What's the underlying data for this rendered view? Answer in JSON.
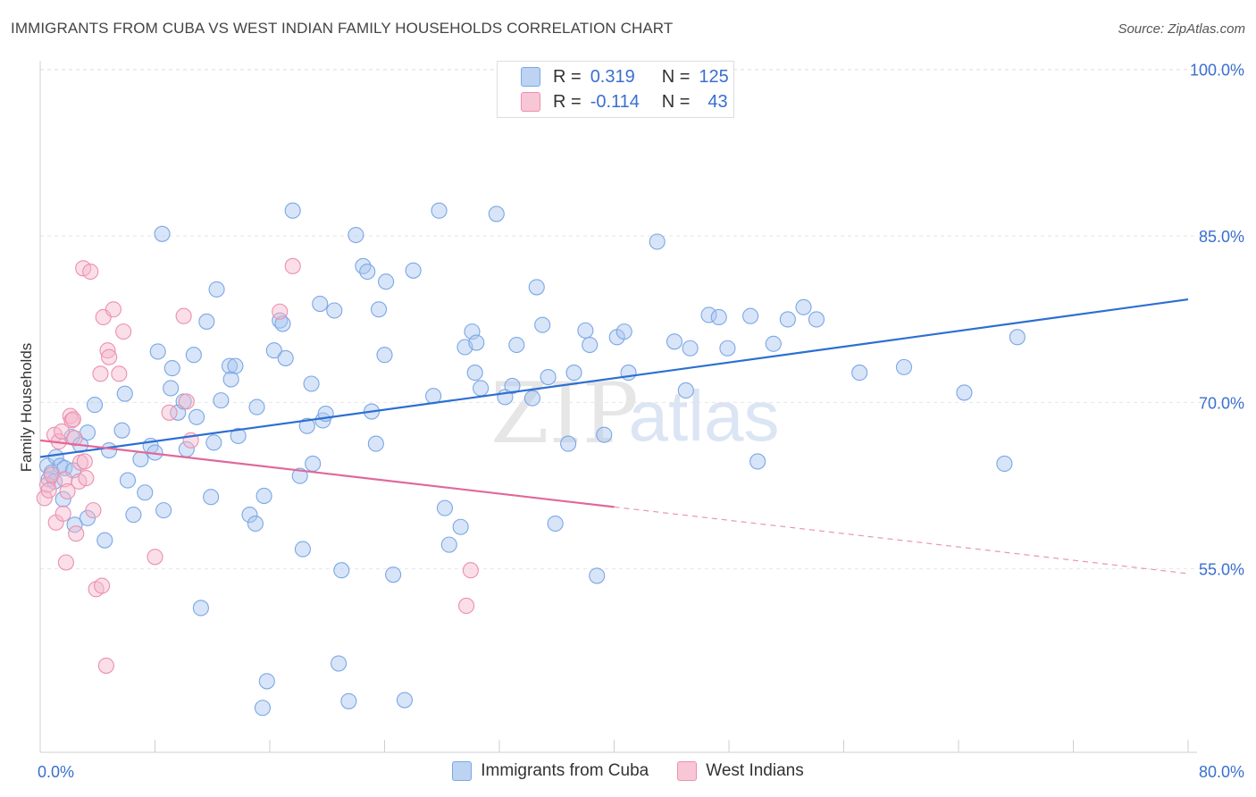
{
  "title": "IMMIGRANTS FROM CUBA VS WEST INDIAN FAMILY HOUSEHOLDS CORRELATION CHART",
  "source": "Source: ZipAtlas.com",
  "watermark": {
    "zip": "ZIP",
    "atlas": "atlas"
  },
  "legend_top": {
    "rows": [
      {
        "r_label": "R =",
        "r_value": "0.319",
        "n_label": "N =",
        "n_value": "125",
        "color": "#a9c6ef"
      },
      {
        "r_label": "R =",
        "r_value": "-0.114",
        "n_label": "N =",
        "n_value": "43",
        "color": "#f5b8cb"
      }
    ]
  },
  "bottom_legend": [
    {
      "label": "Immigrants from Cuba",
      "color": "#a9c6ef"
    },
    {
      "label": "West Indians",
      "color": "#f5b8cb"
    }
  ],
  "chart_data": {
    "type": "scatter",
    "title": "IMMIGRANTS FROM CUBA VS WEST INDIAN FAMILY HOUSEHOLDS CORRELATION CHART",
    "xlabel": "",
    "ylabel": "Family Households",
    "xlim": [
      0,
      80
    ],
    "ylim": [
      40,
      101.5
    ],
    "x_tick_labels": [
      {
        "x": 0,
        "label": "0.0%"
      },
      {
        "x": 80,
        "label": "80.0%"
      }
    ],
    "y_tick_labels": [
      {
        "y": 100,
        "label": "100.0%"
      },
      {
        "y": 85,
        "label": "85.0%"
      },
      {
        "y": 70,
        "label": "70.0%"
      },
      {
        "y": 55,
        "label": "55.0%"
      }
    ],
    "x_minor_ticks": [
      0,
      8,
      16,
      24,
      32,
      40,
      48,
      56,
      64,
      72,
      80
    ],
    "series": [
      {
        "name": "Immigrants from Cuba",
        "color": "#7aa7e6",
        "fill": "rgba(169,198,239,0.45)",
        "trend": {
          "x0": 0,
          "y0": 65.8,
          "x1": 80,
          "y1": 80.0,
          "color": "#2c6fd1",
          "dashed_from": null
        },
        "points": [
          [
            0.5,
            65.0
          ],
          [
            0.6,
            63.8
          ],
          [
            0.8,
            64.4
          ],
          [
            1.0,
            63.6
          ],
          [
            1.1,
            65.8
          ],
          [
            1.4,
            65.0
          ],
          [
            1.6,
            62.0
          ],
          [
            1.7,
            64.8
          ],
          [
            2.2,
            67.6
          ],
          [
            2.3,
            64.6
          ],
          [
            2.4,
            59.7
          ],
          [
            2.8,
            66.9
          ],
          [
            3.3,
            68.0
          ],
          [
            3.3,
            60.3
          ],
          [
            3.8,
            70.5
          ],
          [
            4.5,
            58.3
          ],
          [
            4.8,
            66.4
          ],
          [
            5.7,
            68.2
          ],
          [
            5.9,
            71.5
          ],
          [
            6.1,
            63.7
          ],
          [
            6.5,
            60.6
          ],
          [
            7.0,
            65.6
          ],
          [
            7.3,
            62.6
          ],
          [
            7.7,
            66.8
          ],
          [
            8.0,
            66.2
          ],
          [
            8.2,
            75.3
          ],
          [
            8.5,
            85.9
          ],
          [
            8.6,
            61.0
          ],
          [
            9.1,
            72.0
          ],
          [
            9.2,
            73.8
          ],
          [
            9.6,
            69.8
          ],
          [
            10.0,
            70.8
          ],
          [
            10.2,
            66.5
          ],
          [
            10.7,
            75.0
          ],
          [
            10.9,
            69.4
          ],
          [
            11.2,
            52.2
          ],
          [
            11.6,
            78.0
          ],
          [
            11.9,
            62.2
          ],
          [
            12.1,
            67.1
          ],
          [
            12.3,
            80.9
          ],
          [
            12.6,
            70.9
          ],
          [
            13.2,
            74.0
          ],
          [
            13.3,
            72.8
          ],
          [
            13.6,
            74.0
          ],
          [
            13.8,
            67.7
          ],
          [
            14.6,
            60.6
          ],
          [
            15.0,
            59.8
          ],
          [
            15.1,
            70.3
          ],
          [
            15.5,
            43.2
          ],
          [
            15.6,
            62.3
          ],
          [
            15.8,
            45.6
          ],
          [
            16.3,
            75.4
          ],
          [
            16.7,
            78.1
          ],
          [
            16.9,
            77.8
          ],
          [
            17.1,
            74.7
          ],
          [
            17.6,
            88.0
          ],
          [
            18.1,
            64.1
          ],
          [
            18.3,
            57.5
          ],
          [
            18.6,
            68.6
          ],
          [
            18.9,
            72.4
          ],
          [
            19.0,
            65.2
          ],
          [
            19.5,
            79.6
          ],
          [
            19.7,
            69.1
          ],
          [
            19.9,
            69.7
          ],
          [
            20.5,
            79.0
          ],
          [
            20.8,
            47.2
          ],
          [
            21.0,
            55.6
          ],
          [
            21.5,
            43.8
          ],
          [
            22.0,
            85.8
          ],
          [
            22.5,
            83.0
          ],
          [
            22.8,
            82.5
          ],
          [
            23.1,
            69.9
          ],
          [
            23.4,
            67.0
          ],
          [
            23.6,
            79.1
          ],
          [
            24.0,
            75.0
          ],
          [
            24.1,
            81.6
          ],
          [
            24.6,
            55.2
          ],
          [
            25.4,
            43.9
          ],
          [
            26.0,
            82.6
          ],
          [
            27.4,
            71.3
          ],
          [
            27.8,
            88.0
          ],
          [
            28.2,
            61.2
          ],
          [
            28.5,
            57.9
          ],
          [
            29.3,
            59.5
          ],
          [
            29.6,
            75.7
          ],
          [
            30.1,
            77.1
          ],
          [
            30.3,
            73.4
          ],
          [
            30.4,
            76.1
          ],
          [
            30.7,
            72.0
          ],
          [
            31.8,
            87.7
          ],
          [
            32.4,
            71.2
          ],
          [
            32.9,
            72.2
          ],
          [
            33.2,
            75.9
          ],
          [
            34.3,
            71.1
          ],
          [
            34.6,
            81.1
          ],
          [
            35.0,
            77.7
          ],
          [
            35.4,
            73.0
          ],
          [
            35.9,
            59.8
          ],
          [
            36.8,
            67.0
          ],
          [
            37.2,
            73.4
          ],
          [
            38.0,
            77.2
          ],
          [
            38.3,
            75.9
          ],
          [
            38.8,
            55.1
          ],
          [
            39.3,
            67.8
          ],
          [
            40.2,
            76.6
          ],
          [
            40.7,
            77.1
          ],
          [
            41.0,
            73.4
          ],
          [
            43.0,
            85.2
          ],
          [
            44.2,
            76.2
          ],
          [
            45.0,
            71.8
          ],
          [
            45.3,
            75.6
          ],
          [
            46.6,
            78.6
          ],
          [
            47.3,
            78.4
          ],
          [
            47.9,
            75.6
          ],
          [
            49.5,
            78.5
          ],
          [
            50.0,
            65.4
          ],
          [
            51.1,
            76.0
          ],
          [
            52.1,
            78.2
          ],
          [
            53.2,
            79.3
          ],
          [
            54.1,
            78.2
          ],
          [
            57.1,
            73.4
          ],
          [
            60.2,
            73.9
          ],
          [
            64.4,
            71.6
          ],
          [
            67.2,
            65.2
          ],
          [
            68.1,
            76.6
          ]
        ]
      },
      {
        "name": "West Indians",
        "color": "#ec8fae",
        "fill": "rgba(245,184,203,0.45)",
        "trend": {
          "x0": 0,
          "y0": 67.3,
          "x1": 80,
          "y1": 55.3,
          "color": "#e0689a",
          "dashed_from": 40.0
        },
        "points": [
          [
            0.3,
            62.1
          ],
          [
            0.5,
            63.3
          ],
          [
            0.6,
            62.8
          ],
          [
            0.8,
            64.2
          ],
          [
            1.0,
            67.8
          ],
          [
            1.1,
            59.9
          ],
          [
            1.3,
            67.2
          ],
          [
            1.5,
            68.1
          ],
          [
            1.6,
            60.7
          ],
          [
            1.7,
            63.8
          ],
          [
            1.8,
            56.3
          ],
          [
            1.9,
            62.7
          ],
          [
            2.1,
            69.5
          ],
          [
            2.2,
            69.1
          ],
          [
            2.3,
            69.2
          ],
          [
            2.4,
            67.5
          ],
          [
            2.5,
            58.9
          ],
          [
            2.7,
            63.6
          ],
          [
            2.8,
            65.3
          ],
          [
            3.0,
            82.8
          ],
          [
            3.1,
            65.4
          ],
          [
            3.2,
            63.9
          ],
          [
            3.5,
            82.5
          ],
          [
            3.7,
            61.0
          ],
          [
            3.9,
            53.9
          ],
          [
            4.2,
            73.3
          ],
          [
            4.3,
            54.2
          ],
          [
            4.4,
            78.4
          ],
          [
            4.6,
            47.0
          ],
          [
            4.7,
            75.4
          ],
          [
            4.8,
            74.8
          ],
          [
            5.1,
            79.1
          ],
          [
            5.5,
            73.3
          ],
          [
            5.8,
            77.1
          ],
          [
            8.0,
            56.8
          ],
          [
            9.0,
            69.8
          ],
          [
            10.0,
            78.5
          ],
          [
            10.2,
            70.8
          ],
          [
            10.5,
            67.3
          ],
          [
            16.7,
            78.9
          ],
          [
            17.6,
            83.0
          ],
          [
            30.0,
            55.6
          ],
          [
            29.7,
            52.4
          ]
        ]
      }
    ]
  }
}
